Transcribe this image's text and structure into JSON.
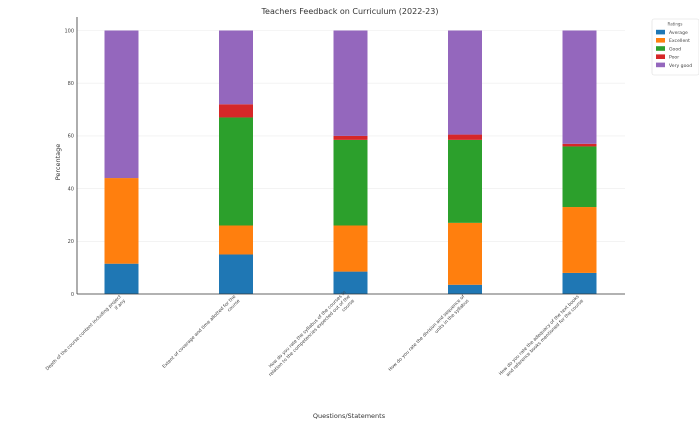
{
  "chart_data": {
    "type": "bar",
    "stacked": true,
    "title": "Teachers Feedback on Curriculum (2022-23)",
    "xlabel": "Questions/Statements",
    "ylabel": "Percentage",
    "ylim": [
      0,
      100
    ],
    "yticks": [
      0,
      20,
      40,
      60,
      80,
      100
    ],
    "grid": true,
    "categories": [
      [
        "Depth of the course content including project",
        "if any"
      ],
      [
        "Extent of coverage and time allotted for the",
        "course"
      ],
      [
        "How do you rate the syllabus of the courses in",
        "relation to the competencies expected out of the",
        "course"
      ],
      [
        "How do you rate the division and sequence of",
        "units in the syllabus"
      ],
      [
        "How do you rate the adequacy of the text books",
        "and reference books mentioned for the course"
      ]
    ],
    "legend": {
      "title": "Ratings",
      "position": "outside-right"
    },
    "series": [
      {
        "name": "Average",
        "color": "#1f77b4",
        "values": [
          11.5,
          15,
          8.5,
          3.5,
          8
        ]
      },
      {
        "name": "Excellent",
        "color": "#ff7f0e",
        "values": [
          32.5,
          11,
          17.5,
          23.5,
          25
        ]
      },
      {
        "name": "Good",
        "color": "#2ca02c",
        "values": [
          0,
          41,
          32.5,
          31.5,
          23
        ]
      },
      {
        "name": "Poor",
        "color": "#d62728",
        "values": [
          0,
          5,
          1.5,
          2,
          1
        ]
      },
      {
        "name": "Very good",
        "color": "#9467bd",
        "values": [
          56,
          28,
          40,
          39.5,
          43
        ]
      }
    ]
  }
}
